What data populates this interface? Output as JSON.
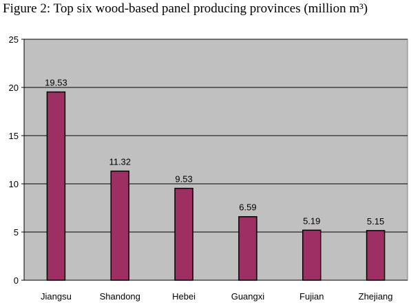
{
  "title": "Figure 2: Top six wood-based panel producing provinces (million m³)",
  "chart_data": {
    "type": "bar",
    "title": "Figure 2: Top six wood-based panel producing provinces (million m³)",
    "categories": [
      "Jiangsu",
      "Shandong",
      "Hebei",
      "Guangxi",
      "Fujian",
      "Zhejiang"
    ],
    "values": [
      19.53,
      11.32,
      9.53,
      6.59,
      5.19,
      5.15
    ],
    "data_labels": [
      "19.53",
      "11.32",
      "9.53",
      "6.59",
      "5.19",
      "5.15"
    ],
    "ylim": [
      0,
      25
    ],
    "yticks": [
      0,
      5,
      10,
      15,
      20,
      25
    ],
    "xlabel": "",
    "ylabel": "",
    "grid": true,
    "legend": "none",
    "colors": {
      "bar_fill": "#9e2f62",
      "bar_stroke": "#000000",
      "plot_background": "#c0c0c0",
      "gridline": "#000000"
    }
  }
}
